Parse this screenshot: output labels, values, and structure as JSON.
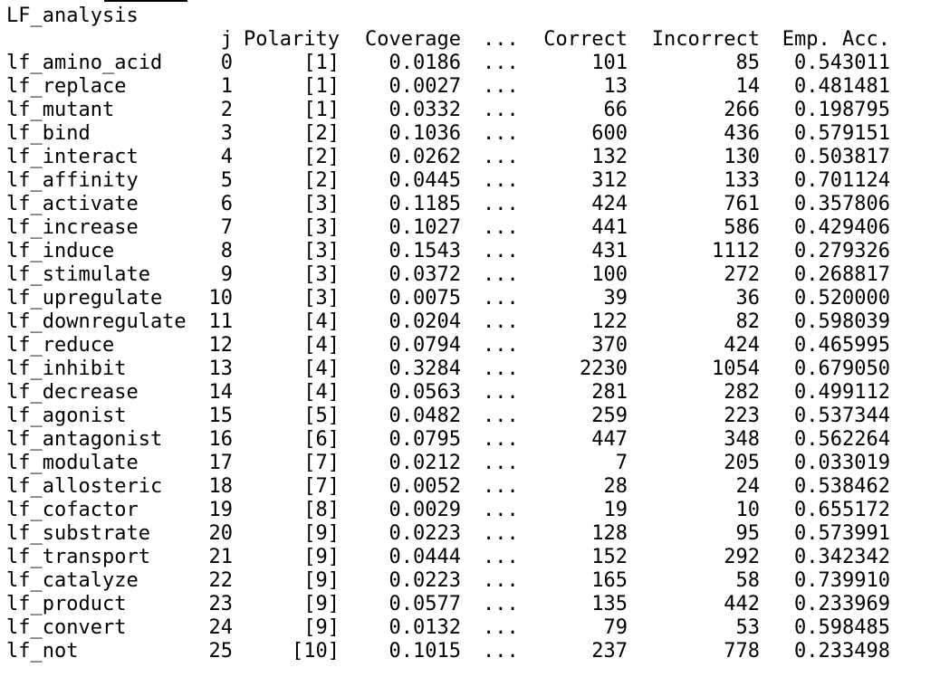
{
  "title": "LF_analysis",
  "columns": {
    "j": "j",
    "polarity": "Polarity",
    "coverage": "Coverage",
    "ellipsis": "...",
    "correct": "Correct",
    "incorrect": "Incorrect",
    "emp_acc": "Emp. Acc."
  },
  "rows": [
    {
      "name": "lf_amino_acid",
      "j": "0",
      "polarity": "[1]",
      "coverage": "0.0186",
      "ellipsis": "...",
      "correct": "101",
      "incorrect": "85",
      "emp_acc": "0.543011"
    },
    {
      "name": "lf_replace",
      "j": "1",
      "polarity": "[1]",
      "coverage": "0.0027",
      "ellipsis": "...",
      "correct": "13",
      "incorrect": "14",
      "emp_acc": "0.481481"
    },
    {
      "name": "lf_mutant",
      "j": "2",
      "polarity": "[1]",
      "coverage": "0.0332",
      "ellipsis": "...",
      "correct": "66",
      "incorrect": "266",
      "emp_acc": "0.198795"
    },
    {
      "name": "lf_bind",
      "j": "3",
      "polarity": "[2]",
      "coverage": "0.1036",
      "ellipsis": "...",
      "correct": "600",
      "incorrect": "436",
      "emp_acc": "0.579151"
    },
    {
      "name": "lf_interact",
      "j": "4",
      "polarity": "[2]",
      "coverage": "0.0262",
      "ellipsis": "...",
      "correct": "132",
      "incorrect": "130",
      "emp_acc": "0.503817"
    },
    {
      "name": "lf_affinity",
      "j": "5",
      "polarity": "[2]",
      "coverage": "0.0445",
      "ellipsis": "...",
      "correct": "312",
      "incorrect": "133",
      "emp_acc": "0.701124"
    },
    {
      "name": "lf_activate",
      "j": "6",
      "polarity": "[3]",
      "coverage": "0.1185",
      "ellipsis": "...",
      "correct": "424",
      "incorrect": "761",
      "emp_acc": "0.357806"
    },
    {
      "name": "lf_increase",
      "j": "7",
      "polarity": "[3]",
      "coverage": "0.1027",
      "ellipsis": "...",
      "correct": "441",
      "incorrect": "586",
      "emp_acc": "0.429406"
    },
    {
      "name": "lf_induce",
      "j": "8",
      "polarity": "[3]",
      "coverage": "0.1543",
      "ellipsis": "...",
      "correct": "431",
      "incorrect": "1112",
      "emp_acc": "0.279326"
    },
    {
      "name": "lf_stimulate",
      "j": "9",
      "polarity": "[3]",
      "coverage": "0.0372",
      "ellipsis": "...",
      "correct": "100",
      "incorrect": "272",
      "emp_acc": "0.268817"
    },
    {
      "name": "lf_upregulate",
      "j": "10",
      "polarity": "[3]",
      "coverage": "0.0075",
      "ellipsis": "...",
      "correct": "39",
      "incorrect": "36",
      "emp_acc": "0.520000"
    },
    {
      "name": "lf_downregulate",
      "j": "11",
      "polarity": "[4]",
      "coverage": "0.0204",
      "ellipsis": "...",
      "correct": "122",
      "incorrect": "82",
      "emp_acc": "0.598039"
    },
    {
      "name": "lf_reduce",
      "j": "12",
      "polarity": "[4]",
      "coverage": "0.0794",
      "ellipsis": "...",
      "correct": "370",
      "incorrect": "424",
      "emp_acc": "0.465995"
    },
    {
      "name": "lf_inhibit",
      "j": "13",
      "polarity": "[4]",
      "coverage": "0.3284",
      "ellipsis": "...",
      "correct": "2230",
      "incorrect": "1054",
      "emp_acc": "0.679050"
    },
    {
      "name": "lf_decrease",
      "j": "14",
      "polarity": "[4]",
      "coverage": "0.0563",
      "ellipsis": "...",
      "correct": "281",
      "incorrect": "282",
      "emp_acc": "0.499112"
    },
    {
      "name": "lf_agonist",
      "j": "15",
      "polarity": "[5]",
      "coverage": "0.0482",
      "ellipsis": "...",
      "correct": "259",
      "incorrect": "223",
      "emp_acc": "0.537344"
    },
    {
      "name": "lf_antagonist",
      "j": "16",
      "polarity": "[6]",
      "coverage": "0.0795",
      "ellipsis": "...",
      "correct": "447",
      "incorrect": "348",
      "emp_acc": "0.562264"
    },
    {
      "name": "lf_modulate",
      "j": "17",
      "polarity": "[7]",
      "coverage": "0.0212",
      "ellipsis": "...",
      "correct": "7",
      "incorrect": "205",
      "emp_acc": "0.033019"
    },
    {
      "name": "lf_allosteric",
      "j": "18",
      "polarity": "[7]",
      "coverage": "0.0052",
      "ellipsis": "...",
      "correct": "28",
      "incorrect": "24",
      "emp_acc": "0.538462"
    },
    {
      "name": "lf_cofactor",
      "j": "19",
      "polarity": "[8]",
      "coverage": "0.0029",
      "ellipsis": "...",
      "correct": "19",
      "incorrect": "10",
      "emp_acc": "0.655172"
    },
    {
      "name": "lf_substrate",
      "j": "20",
      "polarity": "[9]",
      "coverage": "0.0223",
      "ellipsis": "...",
      "correct": "128",
      "incorrect": "95",
      "emp_acc": "0.573991"
    },
    {
      "name": "lf_transport",
      "j": "21",
      "polarity": "[9]",
      "coverage": "0.0444",
      "ellipsis": "...",
      "correct": "152",
      "incorrect": "292",
      "emp_acc": "0.342342"
    },
    {
      "name": "lf_catalyze",
      "j": "22",
      "polarity": "[9]",
      "coverage": "0.0223",
      "ellipsis": "...",
      "correct": "165",
      "incorrect": "58",
      "emp_acc": "0.739910"
    },
    {
      "name": "lf_product",
      "j": "23",
      "polarity": "[9]",
      "coverage": "0.0577",
      "ellipsis": "...",
      "correct": "135",
      "incorrect": "442",
      "emp_acc": "0.233969"
    },
    {
      "name": "lf_convert",
      "j": "24",
      "polarity": "[9]",
      "coverage": "0.0132",
      "ellipsis": "...",
      "correct": "79",
      "incorrect": "53",
      "emp_acc": "0.598485"
    },
    {
      "name": "lf_not",
      "j": "25",
      "polarity": "[10]",
      "coverage": "0.1015",
      "ellipsis": "...",
      "correct": "237",
      "incorrect": "778",
      "emp_acc": "0.233498"
    }
  ]
}
